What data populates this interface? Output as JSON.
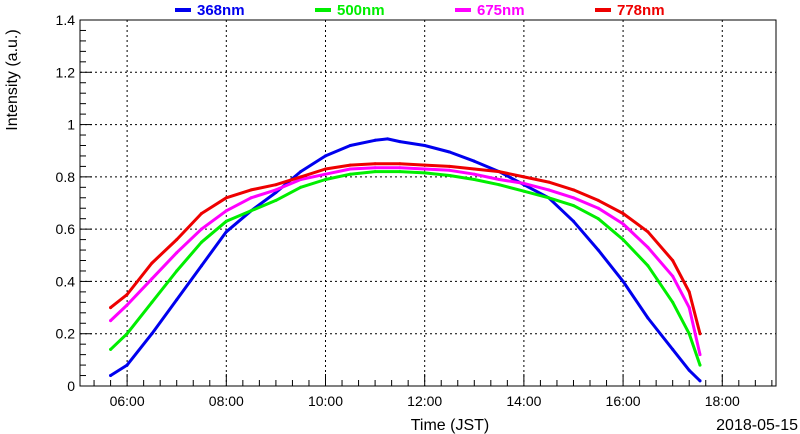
{
  "chart_data": {
    "type": "line",
    "xlabel": "Time (JST)",
    "ylabel": "Intensity (a.u.)",
    "date_label": "2018-05-15",
    "xlim": [
      "05:03",
      "19:05"
    ],
    "ylim": [
      0,
      1.4
    ],
    "grid": true,
    "legend_placement": "top",
    "x_ticks": [
      "06:00",
      "08:00",
      "10:00",
      "12:00",
      "14:00",
      "16:00",
      "18:00"
    ],
    "y_ticks": [
      "0",
      "0.2",
      "0.4",
      "0.6",
      "0.8",
      "1",
      "1.2",
      "1.4"
    ],
    "series": [
      {
        "name": "368nm",
        "color": "#0000ee",
        "points": [
          [
            "05:40",
            0.04
          ],
          [
            "06:00",
            0.08
          ],
          [
            "06:30",
            0.2
          ],
          [
            "07:00",
            0.33
          ],
          [
            "07:30",
            0.46
          ],
          [
            "08:00",
            0.59
          ],
          [
            "08:30",
            0.67
          ],
          [
            "09:00",
            0.74
          ],
          [
            "09:30",
            0.82
          ],
          [
            "10:00",
            0.88
          ],
          [
            "10:30",
            0.92
          ],
          [
            "11:00",
            0.94
          ],
          [
            "11:15",
            0.945
          ],
          [
            "11:30",
            0.935
          ],
          [
            "12:00",
            0.92
          ],
          [
            "12:30",
            0.895
          ],
          [
            "13:00",
            0.86
          ],
          [
            "13:30",
            0.82
          ],
          [
            "14:00",
            0.77
          ],
          [
            "14:30",
            0.72
          ],
          [
            "15:00",
            0.63
          ],
          [
            "15:30",
            0.52
          ],
          [
            "16:00",
            0.4
          ],
          [
            "16:30",
            0.26
          ],
          [
            "17:00",
            0.14
          ],
          [
            "17:20",
            0.06
          ],
          [
            "17:33",
            0.02
          ]
        ]
      },
      {
        "name": "500nm",
        "color": "#00ee00",
        "points": [
          [
            "05:40",
            0.14
          ],
          [
            "06:00",
            0.2
          ],
          [
            "06:30",
            0.32
          ],
          [
            "07:00",
            0.44
          ],
          [
            "07:30",
            0.55
          ],
          [
            "08:00",
            0.63
          ],
          [
            "08:30",
            0.67
          ],
          [
            "09:00",
            0.71
          ],
          [
            "09:30",
            0.76
          ],
          [
            "10:00",
            0.79
          ],
          [
            "10:30",
            0.81
          ],
          [
            "11:00",
            0.82
          ],
          [
            "11:30",
            0.82
          ],
          [
            "12:00",
            0.815
          ],
          [
            "12:30",
            0.805
          ],
          [
            "13:00",
            0.79
          ],
          [
            "13:30",
            0.77
          ],
          [
            "14:00",
            0.745
          ],
          [
            "14:30",
            0.72
          ],
          [
            "15:00",
            0.69
          ],
          [
            "15:30",
            0.64
          ],
          [
            "16:00",
            0.56
          ],
          [
            "16:30",
            0.46
          ],
          [
            "17:00",
            0.32
          ],
          [
            "17:20",
            0.2
          ],
          [
            "17:33",
            0.08
          ]
        ]
      },
      {
        "name": "675nm",
        "color": "#ff00ff",
        "points": [
          [
            "05:40",
            0.25
          ],
          [
            "06:00",
            0.31
          ],
          [
            "06:30",
            0.41
          ],
          [
            "07:00",
            0.51
          ],
          [
            "07:30",
            0.6
          ],
          [
            "08:00",
            0.67
          ],
          [
            "08:30",
            0.72
          ],
          [
            "09:00",
            0.75
          ],
          [
            "09:30",
            0.79
          ],
          [
            "10:00",
            0.81
          ],
          [
            "10:30",
            0.83
          ],
          [
            "11:00",
            0.835
          ],
          [
            "11:30",
            0.835
          ],
          [
            "12:00",
            0.83
          ],
          [
            "12:30",
            0.825
          ],
          [
            "13:00",
            0.81
          ],
          [
            "13:30",
            0.79
          ],
          [
            "14:00",
            0.775
          ],
          [
            "14:30",
            0.75
          ],
          [
            "15:00",
            0.72
          ],
          [
            "15:30",
            0.68
          ],
          [
            "16:00",
            0.62
          ],
          [
            "16:30",
            0.53
          ],
          [
            "17:00",
            0.42
          ],
          [
            "17:20",
            0.3
          ],
          [
            "17:33",
            0.12
          ]
        ]
      },
      {
        "name": "778nm",
        "color": "#ee0000",
        "points": [
          [
            "05:40",
            0.3
          ],
          [
            "06:00",
            0.35
          ],
          [
            "06:30",
            0.47
          ],
          [
            "07:00",
            0.56
          ],
          [
            "07:30",
            0.66
          ],
          [
            "08:00",
            0.72
          ],
          [
            "08:30",
            0.75
          ],
          [
            "09:00",
            0.77
          ],
          [
            "09:30",
            0.8
          ],
          [
            "10:00",
            0.83
          ],
          [
            "10:30",
            0.845
          ],
          [
            "11:00",
            0.85
          ],
          [
            "11:30",
            0.85
          ],
          [
            "12:00",
            0.845
          ],
          [
            "12:30",
            0.84
          ],
          [
            "13:00",
            0.83
          ],
          [
            "13:30",
            0.82
          ],
          [
            "14:00",
            0.8
          ],
          [
            "14:30",
            0.78
          ],
          [
            "15:00",
            0.75
          ],
          [
            "15:30",
            0.71
          ],
          [
            "16:00",
            0.66
          ],
          [
            "16:30",
            0.59
          ],
          [
            "17:00",
            0.48
          ],
          [
            "17:20",
            0.36
          ],
          [
            "17:33",
            0.2
          ]
        ]
      }
    ]
  }
}
